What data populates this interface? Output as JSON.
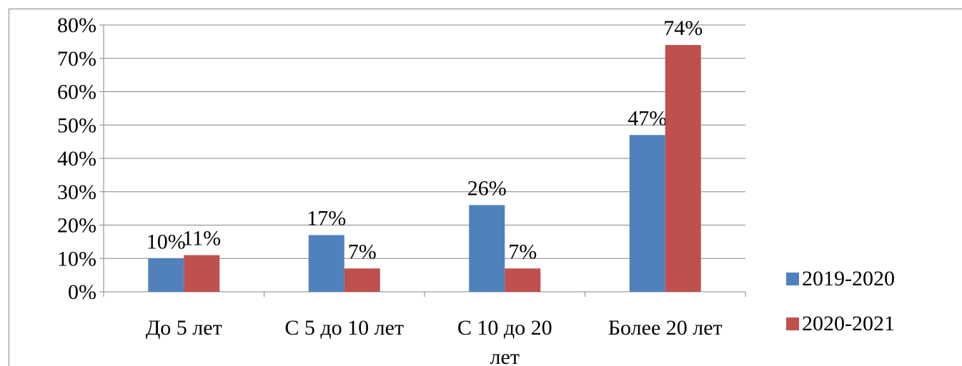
{
  "chart_data": {
    "type": "bar",
    "categories": [
      [
        "До 5 лет"
      ],
      [
        "С 5 до 10 лет"
      ],
      [
        "С 10 до 20",
        "лет"
      ],
      [
        "Более 20 лет"
      ]
    ],
    "series": [
      {
        "name": "2019-2020",
        "values": [
          10,
          17,
          26,
          47
        ],
        "color": "#4f81bd"
      },
      {
        "name": "2020-2021",
        "values": [
          11,
          7,
          7,
          74
        ],
        "color": "#c0504d"
      }
    ],
    "data_labels": [
      [
        "10%",
        "17%",
        "26%",
        "47%"
      ],
      [
        "11%",
        "7%",
        "7%",
        "74%"
      ]
    ],
    "y_ticks": [
      "0%",
      "10%",
      "20%",
      "30%",
      "40%",
      "50%",
      "60%",
      "70%",
      "80%"
    ],
    "ylim": [
      0,
      80
    ],
    "grid": true,
    "legend_position": "right"
  }
}
